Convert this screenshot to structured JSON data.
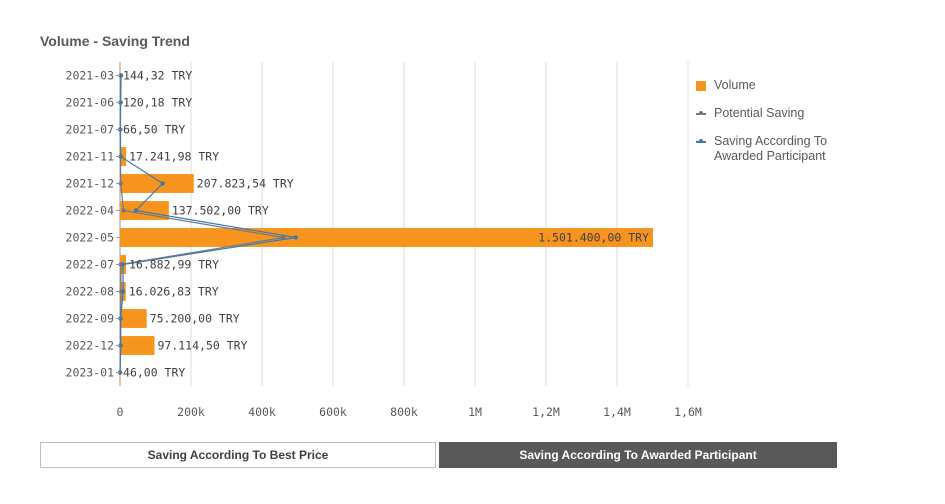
{
  "title": "Volume - Saving Trend",
  "legend": [
    {
      "label": "Volume",
      "color": "#f7941d",
      "kind": "square"
    },
    {
      "label": "Potential Saving",
      "color": "#6d7a86",
      "kind": "line"
    },
    {
      "label": "Saving According To Awarded Participant",
      "color": "#4477aa",
      "kind": "line"
    }
  ],
  "buttons": {
    "best_price": "Saving According To Best Price",
    "awarded": "Saving According To Awarded Participant"
  },
  "chart_data": {
    "type": "bar",
    "orientation": "horizontal",
    "categories": [
      "2021-03",
      "2021-06",
      "2021-07",
      "2021-11",
      "2021-12",
      "2022-04",
      "2022-05",
      "2022-07",
      "2022-08",
      "2022-09",
      "2022-12",
      "2023-01"
    ],
    "xlim": [
      0,
      1600000
    ],
    "x_ticks": [
      0,
      200000,
      400000,
      600000,
      800000,
      1000000,
      1200000,
      1400000,
      1600000
    ],
    "x_tick_labels": [
      "0",
      "200k",
      "400k",
      "600k",
      "800k",
      "1M",
      "1,2M",
      "1,4M",
      "1,6M"
    ],
    "grid": true,
    "legend_position": "right",
    "series": [
      {
        "name": "Volume",
        "type": "bar",
        "color": "#f7941d",
        "values": [
          144.32,
          120.18,
          66.5,
          17241.98,
          207823.54,
          137502.0,
          1501400.0,
          16882.99,
          16026.83,
          75200.0,
          97114.5,
          46.0
        ],
        "labels": [
          "144,32 TRY",
          "120,18 TRY",
          "66,50 TRY",
          "17.241,98 TRY",
          "207.823,54 TRY",
          "137.502,00 TRY",
          "1.501.400,00 TRY",
          "16.882,99 TRY",
          "16.026,83 TRY",
          "75.200,00 TRY",
          "97.114,50 TRY",
          "46,00 TRY"
        ]
      },
      {
        "name": "Potential Saving",
        "type": "line",
        "color": "#6d7a86",
        "values": [
          2000,
          1000,
          500,
          1500,
          2000,
          10000,
          460000,
          2000,
          3000,
          1000,
          1000,
          100
        ]
      },
      {
        "name": "Saving According To Awarded Participant",
        "type": "line",
        "color": "#4477aa",
        "values": [
          3000,
          2000,
          1000,
          2000,
          120000,
          45000,
          495000,
          8000,
          9000,
          2000,
          2000,
          200
        ]
      }
    ]
  }
}
